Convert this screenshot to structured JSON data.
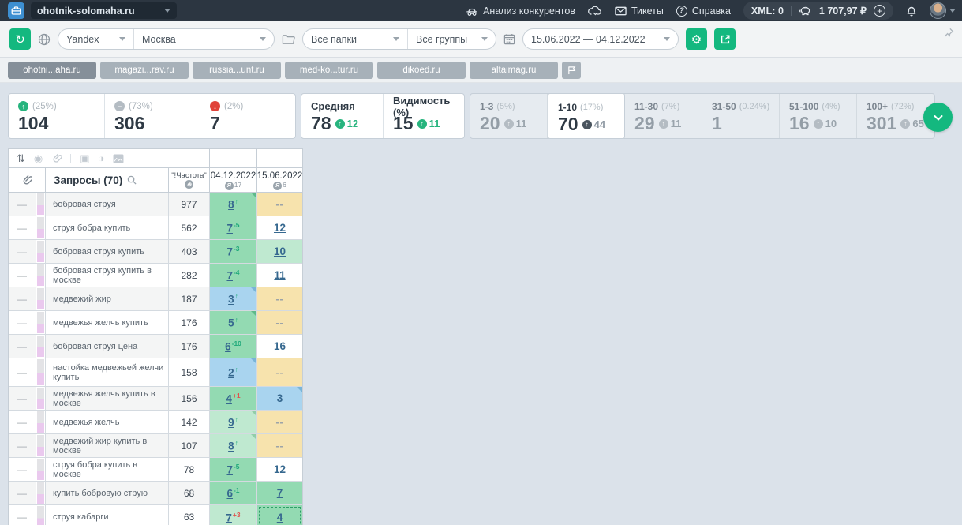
{
  "topbar": {
    "project": "ohotnik-solomaha.ru",
    "competitor_analysis": "Анализ конкурентов",
    "tickets": "Тикеты",
    "help": "Справка",
    "xml_limits": "XML: 0",
    "balance": "1 707,97 ₽"
  },
  "toolbar": {
    "search_engine": "Yandex",
    "region": "Москва",
    "folders": "Все папки",
    "groups": "Все группы",
    "date_range": "15.06.2022 — 04.12.2022"
  },
  "competitors": {
    "tabs": [
      {
        "label": "ohotni...aha.ru",
        "active": true
      },
      {
        "label": "magazi...rav.ru",
        "active": false
      },
      {
        "label": "russia...unt.ru",
        "active": false
      },
      {
        "label": "med-ko...tur.ru",
        "active": false
      },
      {
        "label": "dikoed.ru",
        "active": false
      },
      {
        "label": "altaimag.ru",
        "active": false
      }
    ]
  },
  "stats": {
    "summary": [
      {
        "icon": "up",
        "pct": "(25%)",
        "value": "104"
      },
      {
        "icon": "flat",
        "pct": "(73%)",
        "value": "306"
      },
      {
        "icon": "down",
        "pct": "(2%)",
        "value": "7"
      }
    ],
    "metrics": [
      {
        "label": "Средняя",
        "value": "78",
        "delta": "12"
      },
      {
        "label": "Видимость (%)",
        "value": "15",
        "delta": "11"
      }
    ],
    "ranges": [
      {
        "label": "1-3",
        "pct": "(5%)",
        "value": "20",
        "delta": "11",
        "active": false
      },
      {
        "label": "1-10",
        "pct": "(17%)",
        "value": "70",
        "delta": "44",
        "active": true
      },
      {
        "label": "11-30",
        "pct": "(7%)",
        "value": "29",
        "delta": "11",
        "active": false
      },
      {
        "label": "31-50",
        "pct": "(0.24%)",
        "value": "1",
        "delta": null,
        "active": false
      },
      {
        "label": "51-100",
        "pct": "(4%)",
        "value": "16",
        "delta": "10",
        "active": false
      },
      {
        "label": "100+",
        "pct": "(72%)",
        "value": "301",
        "delta": "65",
        "active": false
      }
    ]
  },
  "table": {
    "queries_header": "Запросы (70)",
    "frequency_header": "\"!Частота\"",
    "date_columns": [
      {
        "date": "04.12.2022",
        "updates": "17"
      },
      {
        "date": "15.06.2022",
        "updates": "6"
      }
    ],
    "rows": [
      {
        "query": "бобровая струя",
        "freq": "977",
        "p1": {
          "pos": "8",
          "delta": "↑",
          "dtype": "new",
          "bg": "green",
          "fold": true
        },
        "p2": {
          "pos": "--",
          "bg": "tan"
        }
      },
      {
        "query": "струя бобра купить",
        "freq": "562",
        "p1": {
          "pos": "7",
          "delta": "-5",
          "dtype": "up",
          "bg": "green",
          "fold": false
        },
        "p2": {
          "pos": "12",
          "bg": "white"
        }
      },
      {
        "query": "бобровая струя купить",
        "freq": "403",
        "p1": {
          "pos": "7",
          "delta": "-3",
          "dtype": "up",
          "bg": "green",
          "fold": false
        },
        "p2": {
          "pos": "10",
          "bg": "greenlight"
        }
      },
      {
        "query": "бобровая струя купить в москве",
        "freq": "282",
        "p1": {
          "pos": "7",
          "delta": "-4",
          "dtype": "up",
          "bg": "green",
          "fold": false
        },
        "p2": {
          "pos": "11",
          "bg": "white"
        }
      },
      {
        "query": "медвежий жир",
        "freq": "187",
        "p1": {
          "pos": "3",
          "delta": "↑",
          "dtype": "new",
          "bg": "blue",
          "fold": true
        },
        "p2": {
          "pos": "--",
          "bg": "tan"
        }
      },
      {
        "query": "медвежья желчь купить",
        "freq": "176",
        "p1": {
          "pos": "5",
          "delta": "↑",
          "dtype": "new",
          "bg": "green",
          "fold": true
        },
        "p2": {
          "pos": "--",
          "bg": "tan"
        }
      },
      {
        "query": "бобровая струя цена",
        "freq": "176",
        "p1": {
          "pos": "6",
          "delta": "-10",
          "dtype": "up",
          "bg": "green",
          "fold": false
        },
        "p2": {
          "pos": "16",
          "bg": "white"
        }
      },
      {
        "query": "настойка медвежьей желчи купить",
        "freq": "158",
        "tall": true,
        "p1": {
          "pos": "2",
          "delta": "↑",
          "dtype": "new",
          "bg": "blue",
          "fold": true
        },
        "p2": {
          "pos": "--",
          "bg": "tan"
        }
      },
      {
        "query": "медвежья желчь купить в москве",
        "freq": "156",
        "p1": {
          "pos": "4",
          "delta": "+1",
          "dtype": "down",
          "bg": "green",
          "fold": false
        },
        "p2": {
          "pos": "3",
          "bg": "blue",
          "fold": true
        }
      },
      {
        "query": "медвежья желчь",
        "freq": "142",
        "p1": {
          "pos": "9",
          "delta": "↑",
          "dtype": "new",
          "bg": "greenlight",
          "fold": true
        },
        "p2": {
          "pos": "--",
          "bg": "tan"
        }
      },
      {
        "query": "медвежий жир купить в москве",
        "freq": "107",
        "p1": {
          "pos": "8",
          "delta": "↑",
          "dtype": "new",
          "bg": "greenlight",
          "fold": true
        },
        "p2": {
          "pos": "--",
          "bg": "tan"
        }
      },
      {
        "query": "струя бобра купить в москве",
        "freq": "78",
        "p1": {
          "pos": "7",
          "delta": "-5",
          "dtype": "up",
          "bg": "green",
          "fold": false
        },
        "p2": {
          "pos": "12",
          "bg": "white"
        }
      },
      {
        "query": "купить бобровую струю",
        "freq": "68",
        "p1": {
          "pos": "6",
          "delta": "-1",
          "dtype": "up",
          "bg": "green",
          "fold": false
        },
        "p2": {
          "pos": "7",
          "bg": "green"
        }
      },
      {
        "query": "струя кабарги",
        "freq": "63",
        "p1": {
          "pos": "7",
          "delta": "+3",
          "dtype": "down",
          "bg": "greenlight",
          "fold": false
        },
        "p2": {
          "pos": "4",
          "bg": "green",
          "selected": true
        }
      }
    ]
  },
  "icons": {
    "handle_glyph": "—",
    "no_position_glyph": "--",
    "sort_glyph": "⇅",
    "refresh_glyph": "↻",
    "gear_glyph": "⚙"
  },
  "colors": {
    "accent_green": "#14b87f",
    "topbar_bg": "#2c3641",
    "cell_green": "#93dab2",
    "cell_green_light": "#bfe9d0",
    "cell_blue": "#a9d4ef",
    "cell_tan": "#f7e3ad",
    "delta_up": "#1fa97a",
    "delta_down": "#e0524d"
  }
}
